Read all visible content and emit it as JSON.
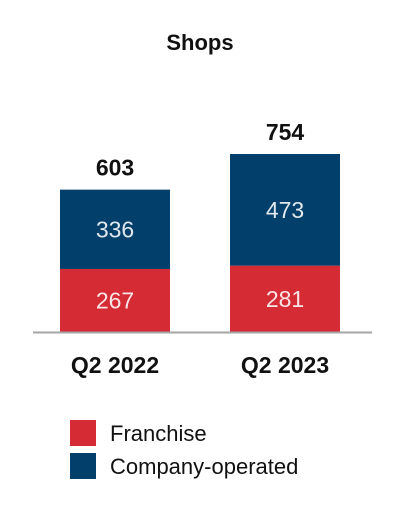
{
  "chart_data": {
    "type": "bar",
    "stacked": true,
    "title": "Shops",
    "xlabel": "",
    "ylabel": "",
    "ylim": [
      0,
      754
    ],
    "grid": false,
    "legend": "bottom",
    "categories": [
      "Q2 2022",
      "Q2 2023"
    ],
    "totals": [
      603,
      754
    ],
    "series": [
      {
        "name": "Franchise",
        "values": [
          267,
          281
        ],
        "color": "#d52b34"
      },
      {
        "name": "Company-operated",
        "values": [
          336,
          473
        ],
        "color": "#023f6b"
      }
    ],
    "axis_color": "#a6a6a6"
  }
}
